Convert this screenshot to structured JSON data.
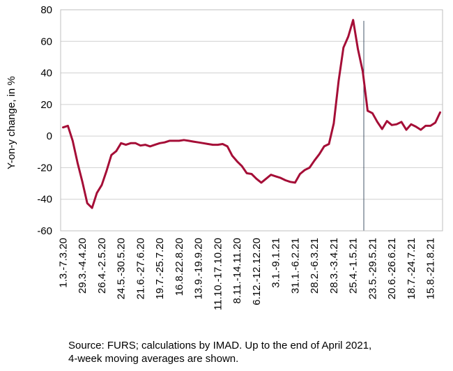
{
  "chart_data": {
    "type": "line",
    "title": "",
    "ylabel": "Y-on-y change, in %",
    "xlabel": "",
    "ylim": [
      -60,
      80
    ],
    "yticks": [
      "80",
      "60",
      "40",
      "20",
      "0",
      "-20",
      "-40",
      "-60"
    ],
    "grid": true,
    "x_ticks": [
      "1.3.-7.3.20",
      "29.3.-4.4.20",
      "26.4.-2.5.20",
      "24.5.-30.5.20",
      "21.6.-27.6.20",
      "19.7.-25.7.20",
      "16.8.22.8.20",
      "13.9.-19.9.20",
      "11.10.-17.10.20",
      "8.11.-14.11.20",
      "6.12.-12.12.20",
      "3.1.-9.1.21",
      "31.1.-6.2.21",
      "28.2.-6.3.21",
      "28.3.-3.4.21",
      "25.4.-1.5.21",
      "23.5.-29.5.21",
      "20.6.-26.6.21",
      "18.7.-24.7.21",
      "15.8.-21.8.21"
    ],
    "series": [
      {
        "color": "#a50e37",
        "values": [
          5.5,
          6.5,
          -3,
          -17,
          -29,
          -42.5,
          -45.5,
          -36,
          -31,
          -22,
          -12,
          -9.5,
          -4.5,
          -5.5,
          -4.5,
          -4.5,
          -6,
          -5.5,
          -6.5,
          -5.5,
          -4.5,
          -4,
          -3,
          -3,
          -3,
          -2.5,
          -3,
          -3.5,
          -4,
          -4.5,
          -5,
          -5.5,
          -5.5,
          -5,
          -6.5,
          -12.5,
          -16,
          -19,
          -23.5,
          -24,
          -27,
          -29.5,
          -27,
          -24.5,
          -25.5,
          -26.5,
          -28,
          -29,
          -29.5,
          -24,
          -21.5,
          -20,
          -15.5,
          -11.5,
          -6.5,
          -5,
          8,
          35,
          56,
          63,
          73.5,
          55,
          41,
          16,
          14.5,
          9,
          4.5,
          9.5,
          7,
          7.5,
          9,
          4,
          7.5,
          6,
          4,
          6.5,
          6.5,
          8.5,
          15
        ]
      }
    ],
    "vline_after_index": 62,
    "vline_color": "#44546a"
  },
  "footnote": {
    "line1": "Source: FURS; calculations by IMAD. Up to the end of April 2021,",
    "line2": "4-week moving averages are shown."
  }
}
